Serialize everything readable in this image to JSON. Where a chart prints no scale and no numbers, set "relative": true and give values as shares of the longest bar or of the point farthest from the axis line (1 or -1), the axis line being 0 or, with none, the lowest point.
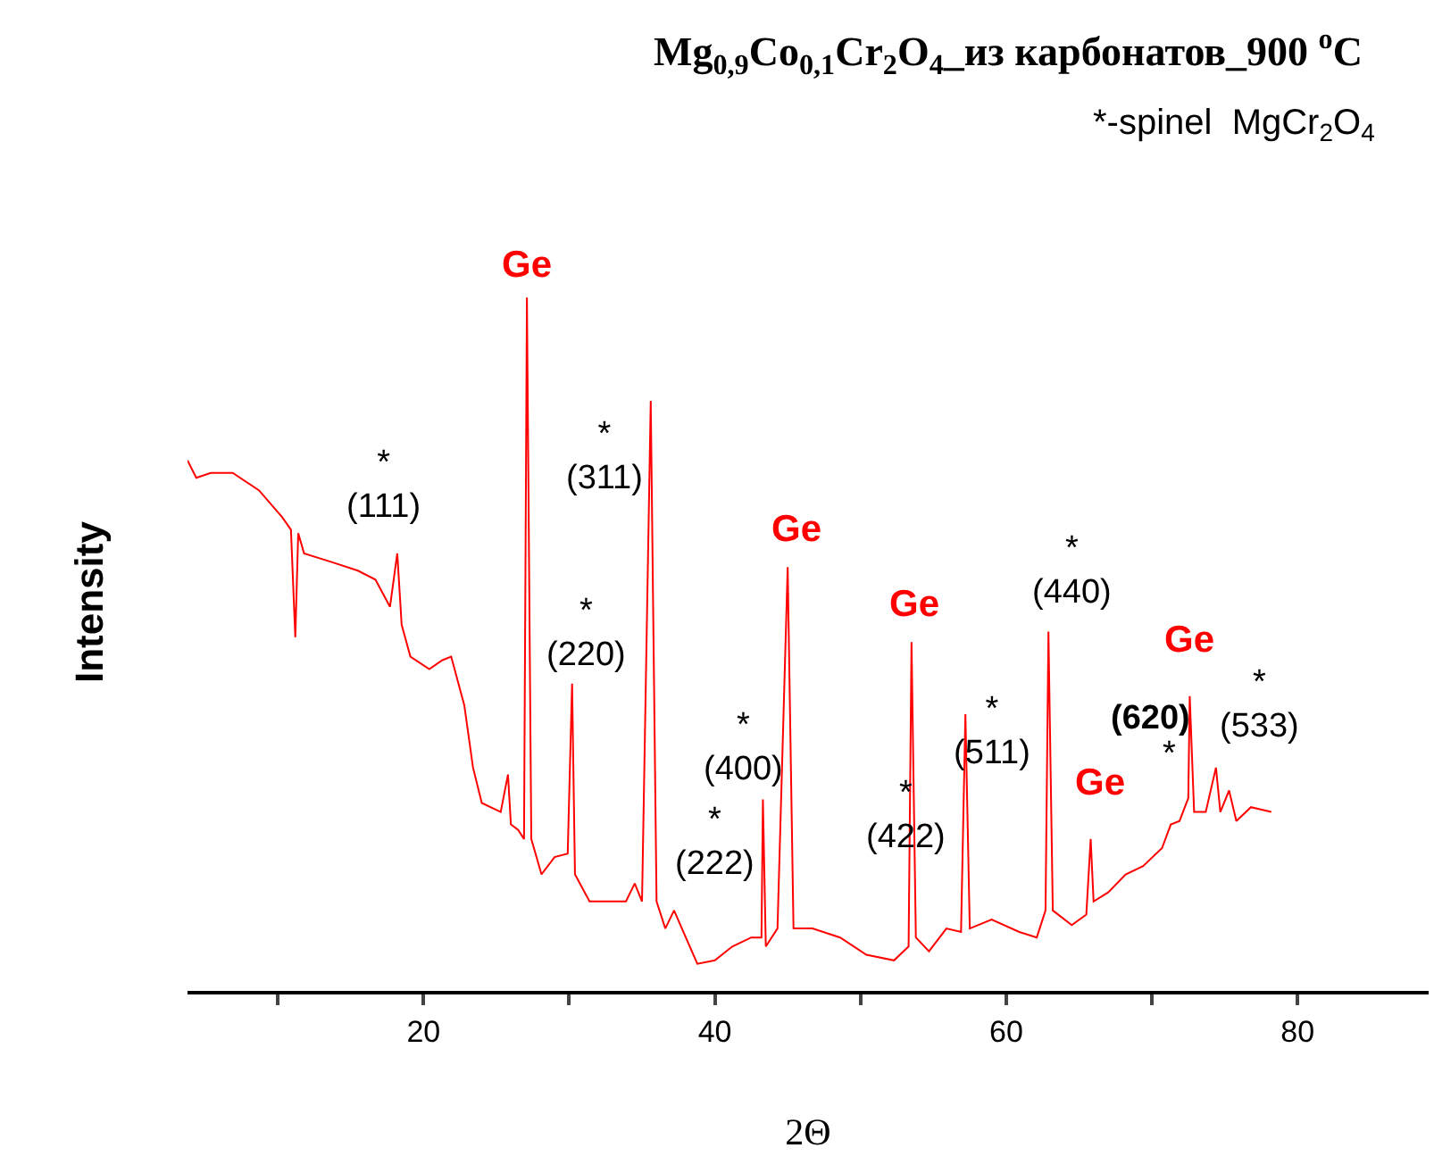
{
  "chart_data": {
    "type": "line",
    "relative": true,
    "title": "Mg$_{0,9}$Co$_{0,1}$Cr$_{2}$O$_{4}$_из карбонатов_900 $^{o}$C",
    "subtitle": "*-spinel  MgCr$_{2}$O$_{4}$",
    "xlabel": "2Θ",
    "ylabel": "Intensity",
    "xlim": [
      3.8,
      89
    ],
    "xticks": [
      {
        "value": 10,
        "label": null
      },
      20,
      {
        "value": 30,
        "label": null
      },
      40,
      {
        "value": 50,
        "label": null
      },
      60,
      {
        "value": 70,
        "label": null
      },
      80
    ],
    "marker": "none",
    "line_style": "solid",
    "series": [
      {
        "color": "#ff0000",
        "x": [
          3.8,
          4.4,
          5.4,
          6.9,
          8.7,
          10.3,
          10.9,
          11.2,
          11.4,
          11.8,
          13.6,
          15.5,
          16.7,
          17.7,
          18.2,
          18.5,
          19.1,
          20.4,
          21.3,
          21.9,
          22.8,
          23.4,
          24.0,
          25.3,
          25.8,
          26.0,
          26.5,
          26.9,
          27.1,
          27.4,
          28.1,
          29.0,
          29.9,
          30.2,
          30.4,
          31.4,
          32.6,
          33.9,
          34.5,
          35.0,
          35.6,
          36.0,
          36.6,
          37.2,
          38.8,
          40.0,
          41.2,
          42.5,
          43.2,
          43.3,
          43.5,
          44.3,
          45.0,
          45.4,
          46.7,
          48.6,
          50.4,
          52.3,
          53.3,
          53.5,
          53.8,
          54.7,
          55.9,
          56.9,
          57.2,
          57.5,
          59.0,
          60.9,
          62.1,
          62.7,
          62.9,
          63.2,
          64.5,
          65.5,
          65.8,
          66.0,
          67.0,
          68.2,
          69.4,
          70.7,
          71.3,
          71.9,
          72.5,
          72.6,
          72.9,
          73.7,
          74.4,
          74.7,
          75.3,
          75.8,
          76.8,
          78.2
        ],
        "values": [
          0.765,
          0.74,
          0.747,
          0.747,
          0.722,
          0.683,
          0.665,
          0.51,
          0.66,
          0.631,
          0.619,
          0.606,
          0.593,
          0.554,
          0.631,
          0.528,
          0.482,
          0.464,
          0.477,
          0.482,
          0.412,
          0.322,
          0.271,
          0.258,
          0.312,
          0.24,
          0.232,
          0.219,
          1.0,
          0.219,
          0.168,
          0.193,
          0.198,
          0.443,
          0.168,
          0.129,
          0.129,
          0.129,
          0.155,
          0.129,
          0.851,
          0.129,
          0.09,
          0.116,
          0.039,
          0.044,
          0.064,
          0.077,
          0.077,
          0.276,
          0.064,
          0.09,
          0.611,
          0.09,
          0.09,
          0.077,
          0.052,
          0.044,
          0.064,
          0.503,
          0.077,
          0.057,
          0.09,
          0.085,
          0.399,
          0.09,
          0.103,
          0.085,
          0.077,
          0.116,
          0.518,
          0.116,
          0.095,
          0.11,
          0.219,
          0.129,
          0.142,
          0.168,
          0.18,
          0.206,
          0.24,
          0.245,
          0.278,
          0.425,
          0.258,
          0.258,
          0.322,
          0.258,
          0.289,
          0.245,
          0.265,
          0.258
        ]
      }
    ],
    "annotations": [
      {
        "text": "Ge",
        "x": 27.1,
        "y": 1.0
      },
      {
        "text": "*\n(111)",
        "x": 18.2,
        "y": 0.631
      },
      {
        "text": "*\n(311)",
        "x": 35.6,
        "y": 0.851
      },
      {
        "text": "*\n(220)",
        "x": 30.2,
        "y": 0.443
      },
      {
        "text": "*\n(400)",
        "x": 43.3,
        "y": 0.276
      },
      {
        "text": "*\n(222)",
        "x": 37.2,
        "y": 0.116
      },
      {
        "text": "Ge",
        "x": 45.0,
        "y": 0.611
      },
      {
        "text": "Ge",
        "x": 53.5,
        "y": 0.503
      },
      {
        "text": "*\n(422)",
        "x": 53.3,
        "y": 0.064
      },
      {
        "text": "*\n(511)",
        "x": 57.2,
        "y": 0.399
      },
      {
        "text": "*\n(440)",
        "x": 62.9,
        "y": 0.518
      },
      {
        "text": "Ge",
        "x": 65.8,
        "y": 0.219
      },
      {
        "text": "Ge",
        "x": 72.6,
        "y": 0.425
      },
      {
        "text": "(620)",
        "x": 71.3,
        "y": 0.24
      },
      {
        "text": "*",
        "x": 71.3,
        "y": 0.24
      },
      {
        "text": "*\n(533)",
        "x": 74.4,
        "y": 0.322
      }
    ]
  }
}
